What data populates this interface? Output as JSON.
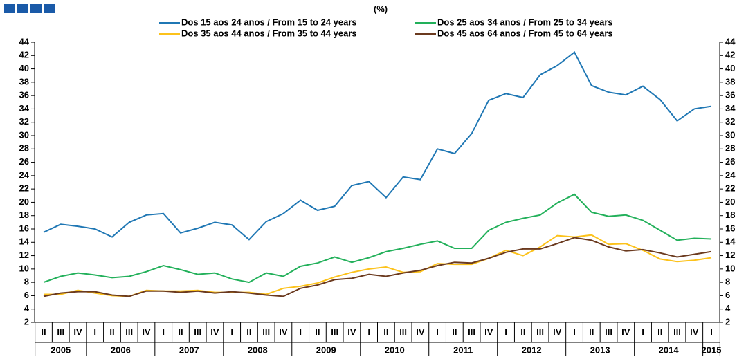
{
  "chart_data": {
    "type": "line",
    "subtitle": "(%)",
    "categories": [
      "II",
      "III",
      "IV",
      "I",
      "II",
      "III",
      "IV",
      "I",
      "II",
      "III",
      "IV",
      "I",
      "II",
      "III",
      "IV",
      "I",
      "II",
      "III",
      "IV",
      "I",
      "II",
      "III",
      "IV",
      "I",
      "II",
      "III",
      "IV",
      "I",
      "II",
      "III",
      "IV",
      "I",
      "II",
      "III",
      "IV",
      "I",
      "II",
      "III",
      "IV",
      "I"
    ],
    "years": [
      "2005",
      "2006",
      "2007",
      "2008",
      "2009",
      "2010",
      "2011",
      "2012",
      "2013",
      "2014",
      "2015"
    ],
    "ylim": [
      2,
      44
    ],
    "yticks": [
      2,
      4,
      6,
      8,
      10,
      12,
      14,
      16,
      18,
      20,
      22,
      24,
      26,
      28,
      30,
      32,
      34,
      36,
      38,
      40,
      42,
      44
    ],
    "series": [
      {
        "name": "Dos 15 aos 24 anos / From 15 to 24 years",
        "color": "#1f77b4",
        "values": [
          15.5,
          16.7,
          16.4,
          16.0,
          14.8,
          17.0,
          18.1,
          18.3,
          15.4,
          16.1,
          17.0,
          16.6,
          14.4,
          17.1,
          18.3,
          20.3,
          18.8,
          19.4,
          22.5,
          23.1,
          20.7,
          23.8,
          23.4,
          28.0,
          27.3,
          30.3,
          35.3,
          36.3,
          35.7,
          39.1,
          40.5,
          42.5,
          37.5,
          36.5,
          36.1,
          37.4,
          35.4,
          32.2,
          34.0,
          34.4
        ]
      },
      {
        "name": "Dos 25 aos 34 anos / From 25 to 34 years",
        "color": "#22b05a",
        "values": [
          8.0,
          8.9,
          9.4,
          9.1,
          8.7,
          8.9,
          9.6,
          10.5,
          9.9,
          9.2,
          9.4,
          8.5,
          8.0,
          9.4,
          8.9,
          10.4,
          10.9,
          11.8,
          11.0,
          11.7,
          12.6,
          13.1,
          13.7,
          14.2,
          13.1,
          13.1,
          15.8,
          17.0,
          17.6,
          18.1,
          19.9,
          21.2,
          18.5,
          17.9,
          18.1,
          17.3,
          15.8,
          14.3,
          14.6,
          14.5
        ]
      },
      {
        "name": "Dos 35 aos 44 anos / From 35 to 44 years",
        "color": "#fcc21b",
        "values": [
          6.2,
          6.2,
          6.8,
          6.4,
          6.0,
          5.9,
          6.8,
          6.7,
          6.7,
          6.8,
          6.5,
          6.5,
          6.5,
          6.2,
          7.1,
          7.4,
          7.9,
          8.8,
          9.5,
          10.0,
          10.3,
          9.5,
          9.6,
          10.8,
          10.7,
          10.7,
          11.6,
          12.8,
          12.0,
          13.3,
          15.0,
          14.8,
          15.1,
          13.7,
          13.8,
          12.8,
          11.5,
          11.1,
          11.3,
          11.7
        ]
      },
      {
        "name": "Dos 45 aos 64 anos / From 45 to 64 years",
        "color": "#6b3a1f",
        "values": [
          5.9,
          6.4,
          6.6,
          6.6,
          6.1,
          5.9,
          6.7,
          6.7,
          6.5,
          6.7,
          6.4,
          6.6,
          6.4,
          6.1,
          5.9,
          7.1,
          7.6,
          8.4,
          8.6,
          9.2,
          8.9,
          9.4,
          9.8,
          10.5,
          11.0,
          10.9,
          11.6,
          12.5,
          13.0,
          13.0,
          13.8,
          14.7,
          14.3,
          13.3,
          12.7,
          12.9,
          12.4,
          11.8,
          12.2,
          12.6
        ]
      }
    ]
  }
}
